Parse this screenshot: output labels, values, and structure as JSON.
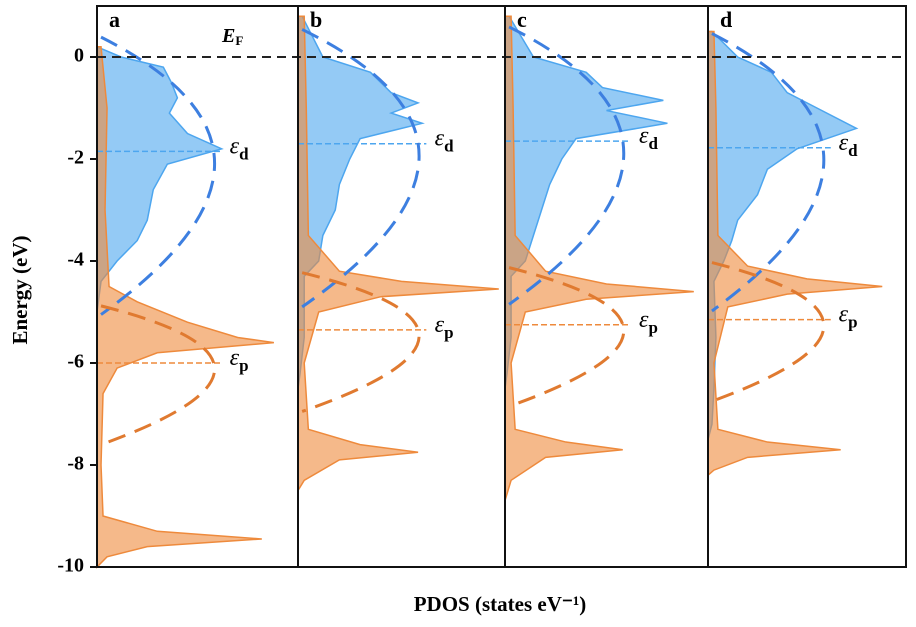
{
  "figure": {
    "y_label": "Energy (eV)",
    "x_label": "PDOS (states eV⁻¹)",
    "ylim": [
      -10,
      1
    ],
    "yticks": [
      0,
      -2,
      -4,
      -6,
      -8,
      -10
    ],
    "xlim": [
      0,
      1
    ],
    "fermi": {
      "text": "E",
      "sub": "F",
      "value": 0
    }
  },
  "chart_data": [
    {
      "type": "area",
      "label": "a",
      "series": [
        {
          "color": "#4da6ef",
          "energies": [
            0.2,
            0,
            -0.2,
            -0.5,
            -0.8,
            -1.1,
            -1.5,
            -1.8,
            -2.1,
            -2.6,
            -3.2,
            -3.6,
            -4.0,
            -4.4,
            -5
          ],
          "values": [
            0,
            0.12,
            0.33,
            0.37,
            0.4,
            0.36,
            0.45,
            0.62,
            0.35,
            0.28,
            0.25,
            0.2,
            0.1,
            0.02,
            0
          ]
        },
        {
          "color": "#ee8a3c",
          "energies": [
            0.2,
            -1,
            -3,
            -4.5,
            -4.8,
            -5.2,
            -5.5,
            -5.6,
            -5.8,
            -6.1,
            -6.6,
            -8,
            -9,
            -9.3,
            -9.45,
            -9.6,
            -9.8,
            -10
          ],
          "values": [
            0.02,
            0.05,
            0.04,
            0.06,
            0.2,
            0.45,
            0.7,
            0.88,
            0.3,
            0.1,
            0.03,
            0.02,
            0.03,
            0.3,
            0.82,
            0.25,
            0.05,
            0
          ]
        }
      ],
      "annotations": [
        {
          "text": "ε",
          "sub": "d",
          "value": -1.85,
          "color": "#4da6ef"
        },
        {
          "text": "ε",
          "sub": "p",
          "value": -6.0,
          "color": "#ee8a3c"
        }
      ]
    },
    {
      "type": "area",
      "label": "b",
      "series": [
        {
          "color": "#4da6ef",
          "energies": [
            0.8,
            0,
            -0.3,
            -0.7,
            -0.9,
            -1.1,
            -1.3,
            -1.6,
            -2.0,
            -2.5,
            -3.0,
            -3.5,
            -4.0,
            -4.3,
            -5.5,
            -6.2,
            -6.5
          ],
          "values": [
            0.02,
            0.12,
            0.35,
            0.45,
            0.58,
            0.45,
            0.6,
            0.3,
            0.25,
            0.2,
            0.18,
            0.12,
            0.1,
            0.03,
            0.03,
            0.01,
            0
          ]
        },
        {
          "color": "#ee8a3c",
          "energies": [
            0.8,
            -1,
            -3.5,
            -4.2,
            -4.4,
            -4.55,
            -4.7,
            -5.0,
            -6,
            -7.3,
            -7.6,
            -7.75,
            -7.9,
            -8.3,
            -8.5
          ],
          "values": [
            0.03,
            0.04,
            0.05,
            0.2,
            0.5,
            0.97,
            0.4,
            0.1,
            0.03,
            0.05,
            0.3,
            0.58,
            0.2,
            0.03,
            0
          ]
        }
      ],
      "annotations": [
        {
          "text": "ε",
          "sub": "d",
          "value": -1.7,
          "color": "#4da6ef"
        },
        {
          "text": "ε",
          "sub": "p",
          "value": -5.35,
          "color": "#ee8a3c"
        }
      ]
    },
    {
      "type": "area",
      "label": "c",
      "series": [
        {
          "color": "#4da6ef",
          "energies": [
            0.8,
            0,
            -0.3,
            -0.6,
            -0.85,
            -1.05,
            -1.3,
            -1.6,
            -2.0,
            -2.5,
            -3.0,
            -3.5,
            -4.0,
            -4.3,
            -5.5,
            -6.2,
            -6.5
          ],
          "values": [
            0.02,
            0.14,
            0.4,
            0.48,
            0.78,
            0.5,
            0.8,
            0.35,
            0.28,
            0.22,
            0.18,
            0.14,
            0.1,
            0.03,
            0.03,
            0.01,
            0
          ]
        },
        {
          "color": "#ee8a3c",
          "energies": [
            0.8,
            -1,
            -3.5,
            -4.2,
            -4.45,
            -4.6,
            -4.75,
            -5.0,
            -6,
            -7.3,
            -7.55,
            -7.7,
            -7.85,
            -8.3,
            -8.7
          ],
          "values": [
            0.03,
            0.04,
            0.05,
            0.2,
            0.5,
            0.93,
            0.4,
            0.1,
            0.03,
            0.05,
            0.3,
            0.58,
            0.2,
            0.03,
            0
          ]
        }
      ],
      "annotations": [
        {
          "text": "ε",
          "sub": "d",
          "value": -1.65,
          "color": "#4da6ef"
        },
        {
          "text": "ε",
          "sub": "p",
          "value": -5.25,
          "color": "#ee8a3c"
        }
      ]
    },
    {
      "type": "area",
      "label": "d",
      "series": [
        {
          "color": "#4da6ef",
          "energies": [
            0.5,
            0,
            -0.3,
            -0.7,
            -1.0,
            -1.4,
            -1.8,
            -2.2,
            -2.7,
            -3.2,
            -3.6,
            -4.0,
            -4.4,
            -5.5,
            -6.5,
            -7.2,
            -7.5
          ],
          "values": [
            0.02,
            0.15,
            0.32,
            0.4,
            0.55,
            0.75,
            0.45,
            0.3,
            0.25,
            0.15,
            0.12,
            0.08,
            0.03,
            0.04,
            0.03,
            0.02,
            0
          ]
        },
        {
          "color": "#ee8a3c",
          "energies": [
            0.5,
            -1,
            -3.5,
            -4.1,
            -4.35,
            -4.5,
            -4.65,
            -4.9,
            -6,
            -7.3,
            -7.55,
            -7.7,
            -7.85,
            -8.1,
            -8.2
          ],
          "values": [
            0.03,
            0.04,
            0.05,
            0.2,
            0.5,
            0.88,
            0.4,
            0.1,
            0.03,
            0.05,
            0.3,
            0.67,
            0.2,
            0.03,
            0
          ]
        }
      ],
      "annotations": [
        {
          "text": "ε",
          "sub": "d",
          "value": -1.78,
          "color": "#4da6ef"
        },
        {
          "text": "ε",
          "sub": "p",
          "value": -5.15,
          "color": "#ee8a3c"
        }
      ]
    }
  ]
}
